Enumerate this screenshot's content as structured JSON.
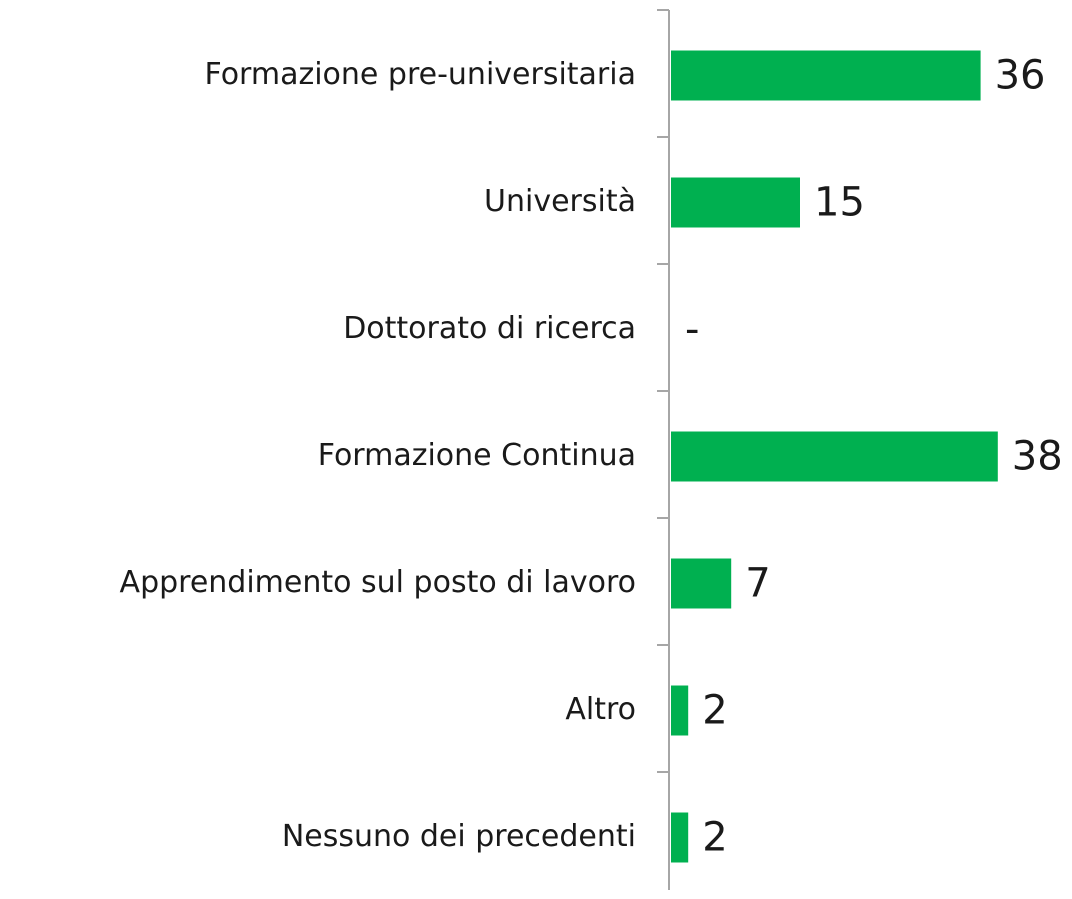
{
  "chart_data": {
    "type": "bar",
    "orientation": "horizontal",
    "categories": [
      "Formazione pre-universitaria",
      "Università",
      "Dottorato di ricerca",
      "Formazione Continua",
      "Apprendimento sul posto di lavoro",
      "Altro",
      "Nessuno dei precedenti"
    ],
    "values": [
      36,
      15,
      0,
      38,
      7,
      2,
      2
    ],
    "value_labels": [
      "36",
      "15",
      "-",
      "38",
      "7",
      "2",
      "2"
    ],
    "color": "#00b050"
  }
}
